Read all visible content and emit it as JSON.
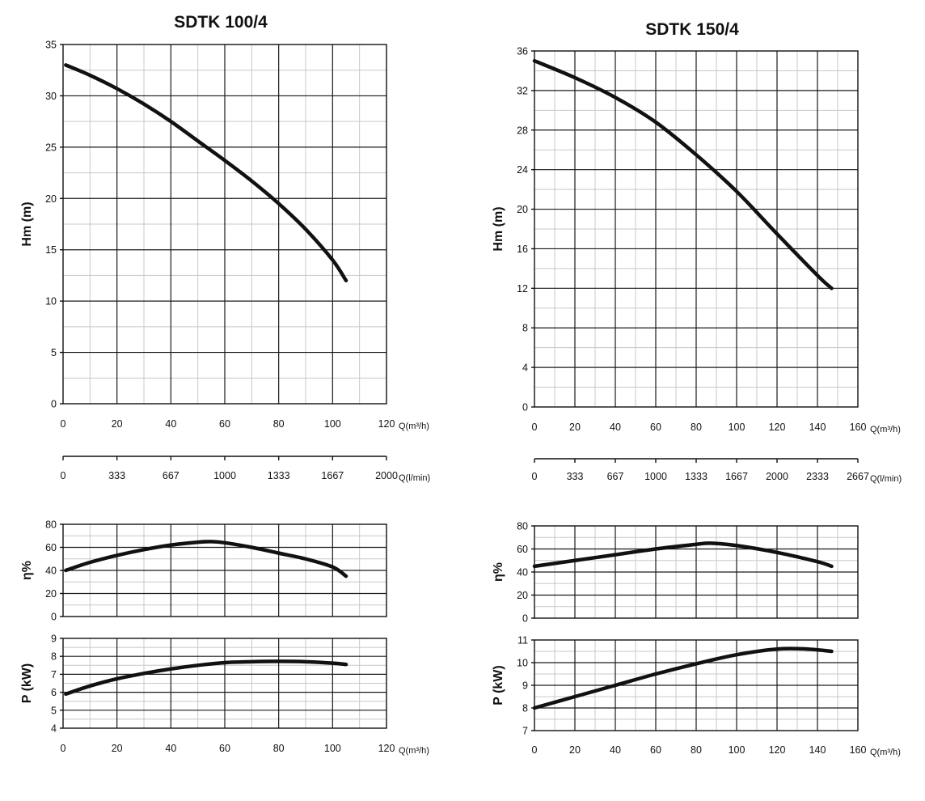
{
  "chart_data": [
    {
      "title": "SDTK 100/4",
      "x_unit": "Q(m³/h)",
      "x_ticks": [
        "0",
        "20",
        "40",
        "60",
        "80",
        "100",
        "120"
      ],
      "x_range": [
        0,
        120
      ],
      "secondary_axis": {
        "unit": "Q(l/min)",
        "ticks": [
          "0",
          "333",
          "667",
          "1000",
          "1333",
          "1667",
          "2000"
        ]
      },
      "panels": [
        {
          "type": "line",
          "ylabel": "Hm   (m)",
          "ylim": [
            0,
            35
          ],
          "y_ticks": [
            "0",
            "5",
            "10",
            "15",
            "20",
            "25",
            "30",
            "35"
          ],
          "x": [
            1,
            10,
            20,
            30,
            40,
            50,
            60,
            70,
            80,
            90,
            100,
            105
          ],
          "y": [
            33,
            32,
            30.7,
            29.2,
            27.5,
            25.6,
            23.7,
            21.7,
            19.5,
            17,
            14,
            12
          ]
        },
        {
          "type": "line",
          "ylabel": "η%",
          "ylim": [
            0,
            80
          ],
          "y_ticks": [
            "0",
            "20",
            "40",
            "60",
            "80"
          ],
          "x": [
            1,
            10,
            20,
            30,
            40,
            50,
            55,
            60,
            70,
            80,
            90,
            100,
            105
          ],
          "y": [
            40,
            47,
            53,
            58,
            62,
            64.5,
            65,
            64,
            60,
            55,
            50,
            43,
            35
          ]
        },
        {
          "type": "line",
          "ylabel": "P   (kW)",
          "ylim": [
            4,
            9
          ],
          "y_ticks": [
            "4",
            "5",
            "6",
            "7",
            "8",
            "9"
          ],
          "x": [
            1,
            10,
            20,
            30,
            40,
            50,
            60,
            70,
            80,
            90,
            100,
            105
          ],
          "y": [
            5.9,
            6.35,
            6.75,
            7.05,
            7.3,
            7.5,
            7.65,
            7.7,
            7.72,
            7.7,
            7.62,
            7.55
          ]
        }
      ]
    },
    {
      "title": "SDTK 150/4",
      "x_unit": "Q(m³/h)",
      "x_ticks": [
        "0",
        "20",
        "40",
        "60",
        "80",
        "100",
        "120",
        "140",
        "160"
      ],
      "x_range": [
        0,
        160
      ],
      "secondary_axis": {
        "unit": "Q(l/min)",
        "ticks": [
          "0",
          "333",
          "667",
          "1000",
          "1333",
          "1667",
          "2000",
          "2333",
          "2667"
        ]
      },
      "panels": [
        {
          "type": "line",
          "ylabel": "Hm   (m)",
          "ylim": [
            0,
            36
          ],
          "y_ticks": [
            "0",
            "4",
            "8",
            "12",
            "16",
            "20",
            "24",
            "28",
            "32",
            "36"
          ],
          "x": [
            0,
            20,
            40,
            60,
            80,
            100,
            120,
            140,
            147
          ],
          "y": [
            35,
            33.3,
            31.3,
            28.8,
            25.5,
            21.8,
            17.5,
            13.3,
            12
          ]
        },
        {
          "type": "line",
          "ylabel": "η%",
          "ylim": [
            0,
            80
          ],
          "y_ticks": [
            "0",
            "20",
            "40",
            "60",
            "80"
          ],
          "x": [
            0,
            20,
            40,
            60,
            80,
            87,
            100,
            120,
            140,
            147
          ],
          "y": [
            45,
            50,
            55,
            60,
            64,
            65,
            63,
            57,
            49,
            45
          ]
        },
        {
          "type": "line",
          "ylabel": "P   (kW)",
          "ylim": [
            7,
            11
          ],
          "y_ticks": [
            "7",
            "8",
            "9",
            "10",
            "11"
          ],
          "x": [
            0,
            20,
            40,
            60,
            80,
            100,
            120,
            135,
            147
          ],
          "y": [
            8,
            8.5,
            9,
            9.5,
            9.95,
            10.35,
            10.6,
            10.6,
            10.5
          ]
        }
      ]
    }
  ]
}
